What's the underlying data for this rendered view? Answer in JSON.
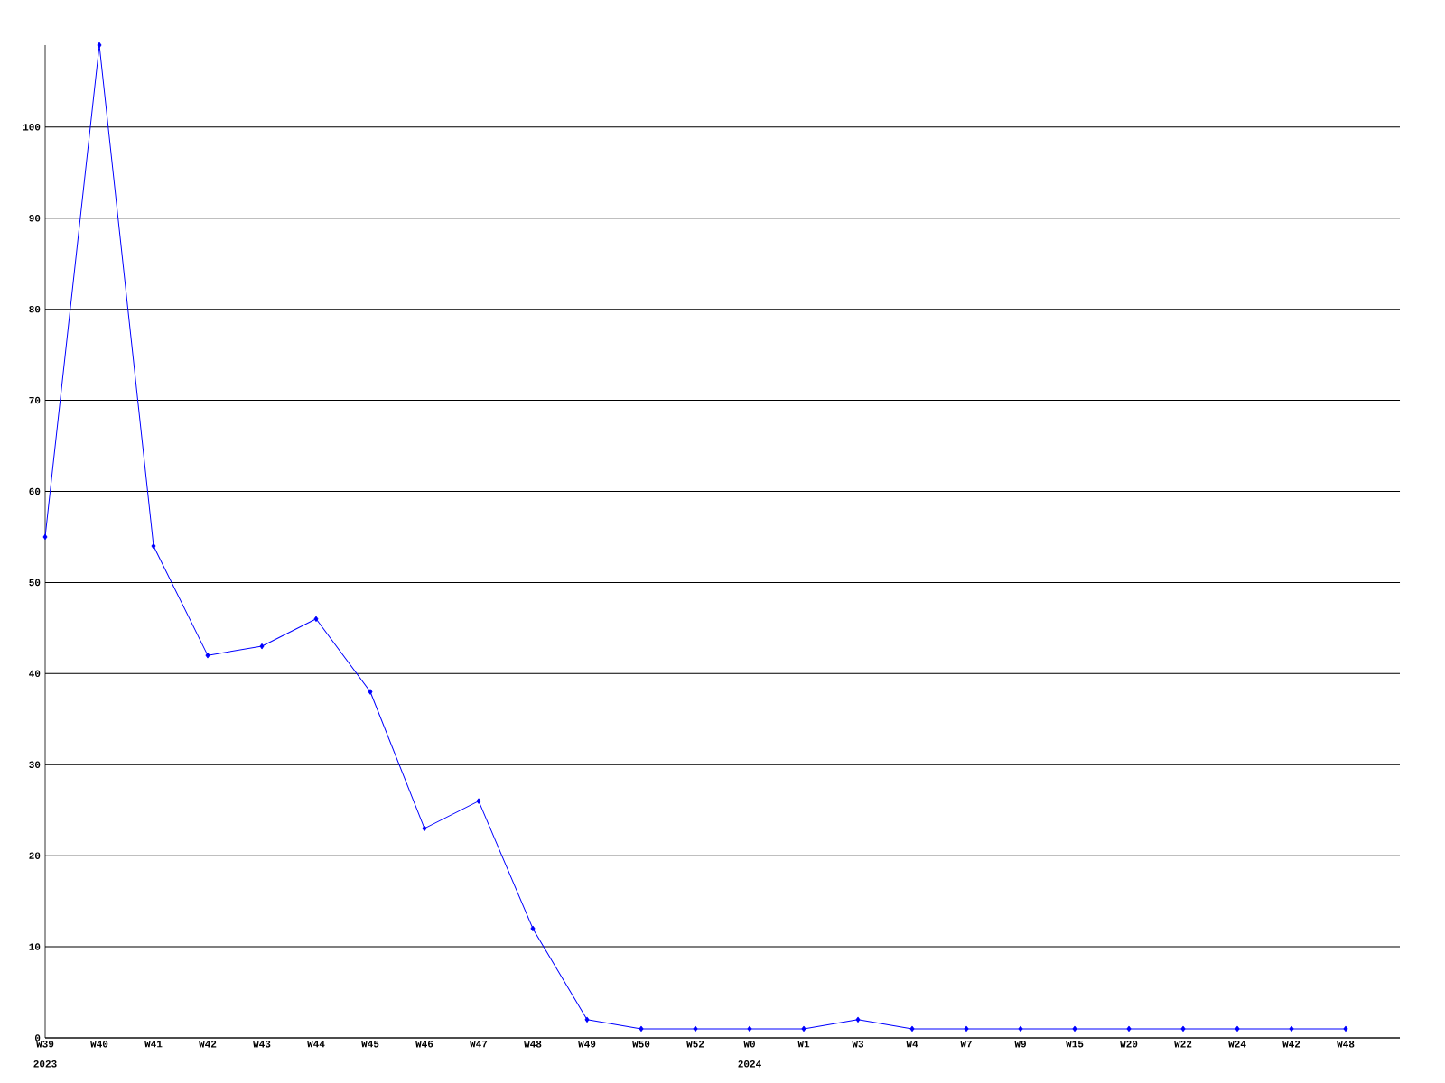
{
  "chart_data": {
    "type": "line",
    "categories": [
      "W39",
      "W40",
      "W41",
      "W42",
      "W43",
      "W44",
      "W45",
      "W46",
      "W47",
      "W48",
      "W49",
      "W50",
      "W52",
      "W0",
      "W1",
      "W3",
      "W4",
      "W7",
      "W9",
      "W15",
      "W20",
      "W22",
      "W24",
      "W42",
      "W48"
    ],
    "series": [
      {
        "color": "#0000ff",
        "values": [
          55,
          109,
          54,
          42,
          43,
          46,
          38,
          23,
          26,
          12,
          2,
          1,
          1,
          1,
          1,
          2,
          1,
          1,
          1,
          1,
          1,
          1,
          1,
          1,
          1
        ]
      }
    ],
    "ylim": [
      0,
      109
    ],
    "yticks": [
      0,
      10,
      20,
      30,
      40,
      50,
      60,
      70,
      80,
      90,
      100
    ],
    "grid": "y",
    "marker": "diamond",
    "line_style": "solid",
    "annotations": [
      "2023",
      "2024"
    ]
  }
}
